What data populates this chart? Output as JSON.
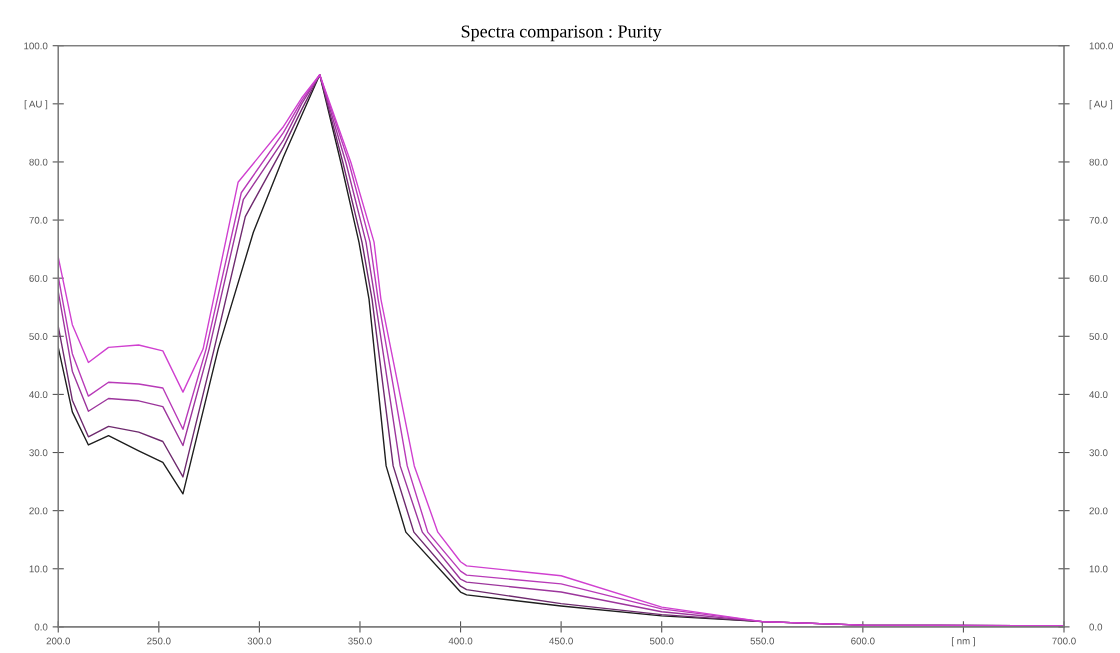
{
  "chart_data": {
    "type": "line",
    "title": "Spectra comparison : Purity",
    "xlim": [
      200,
      700
    ],
    "xticks": [
      {
        "value": 200,
        "label": "200.0"
      },
      {
        "value": 250,
        "label": "250.0"
      },
      {
        "value": 300,
        "label": "300.0"
      },
      {
        "value": 350,
        "label": "350.0"
      },
      {
        "value": 400,
        "label": "400.0"
      },
      {
        "value": 450,
        "label": "450.0"
      },
      {
        "value": 500,
        "label": "500.0"
      },
      {
        "value": 550,
        "label": "550.0"
      },
      {
        "value": 600,
        "label": "600.0"
      },
      {
        "value": 650,
        "label": "[ nm ]"
      },
      {
        "value": 700,
        "label": "700.0"
      }
    ],
    "ylim": [
      0,
      100
    ],
    "yticks": [
      {
        "value": 0,
        "label": "0.0"
      },
      {
        "value": 10,
        "label": "10.0"
      },
      {
        "value": 20,
        "label": "20.0"
      },
      {
        "value": 30,
        "label": "30.0"
      },
      {
        "value": 40,
        "label": "40.0"
      },
      {
        "value": 50,
        "label": "50.0"
      },
      {
        "value": 60,
        "label": "60.0"
      },
      {
        "value": 70,
        "label": "70.0"
      },
      {
        "value": 80,
        "label": "80.0"
      },
      {
        "value": 90,
        "label": "[ AU ]"
      },
      {
        "value": 100,
        "label": "100.0"
      }
    ],
    "y2lim": [
      0,
      100
    ],
    "y2ticks": [
      {
        "value": 0,
        "label": "0.0"
      },
      {
        "value": 10,
        "label": "10.0"
      },
      {
        "value": 20,
        "label": "20.0"
      },
      {
        "value": 30,
        "label": "30.0"
      },
      {
        "value": 40,
        "label": "40.0"
      },
      {
        "value": 50,
        "label": "50.0"
      },
      {
        "value": 60,
        "label": "60.0"
      },
      {
        "value": 70,
        "label": "70.0"
      },
      {
        "value": 80,
        "label": "80.0"
      },
      {
        "value": 90,
        "label": "[ AU ]"
      },
      {
        "value": 100,
        "label": "100.0"
      }
    ],
    "grid": false,
    "legend": false,
    "series": [
      {
        "color": "#1e1e1e",
        "x": [
          200,
          207,
          215,
          225,
          240,
          252,
          262,
          279.5,
          297,
          312,
          321,
          330,
          340.5,
          349.5,
          354.5,
          363,
          372.8,
          400,
          403,
          450,
          500,
          550,
          600,
          700
        ],
        "values": [
          48.1,
          37,
          31.3,
          32.9,
          30.3,
          28.3,
          22.9,
          47.8,
          67.9,
          80.9,
          88,
          95,
          79.9,
          66.2,
          56.4,
          27.7,
          16.3,
          6.0,
          5.5,
          3.6,
          1.9,
          0.9,
          0.3,
          0.2
        ]
      },
      {
        "color": "#6e2a6e",
        "x": [
          200,
          207,
          215,
          225,
          240,
          252,
          262,
          277.5,
          293,
          312,
          321,
          330,
          341.5,
          351,
          356,
          366.5,
          376.8,
          400,
          403,
          450,
          500,
          550,
          600,
          700
        ],
        "values": [
          51.7,
          39,
          32.7,
          34.5,
          33.5,
          31.9,
          25.8,
          47.8,
          70.6,
          82.6,
          89,
          95,
          79.9,
          66.2,
          56.4,
          27.7,
          16.3,
          7.0,
          6.4,
          4.0,
          2.1,
          0.9,
          0.3,
          0.2
        ]
      },
      {
        "color": "#9c359c",
        "x": [
          200,
          207,
          215,
          225,
          240,
          252,
          262,
          275,
          292,
          312,
          321,
          330,
          343,
          353,
          357.5,
          370,
          381,
          400,
          403,
          450,
          500,
          550,
          600,
          700
        ],
        "values": [
          57.7,
          44,
          37.1,
          39.3,
          38.9,
          37.9,
          31.2,
          47.8,
          73.5,
          83.8,
          90,
          95,
          79.9,
          66.2,
          56.4,
          27.7,
          16.3,
          8.2,
          7.7,
          6.0,
          2.6,
          0.9,
          0.3,
          0.2
        ]
      },
      {
        "color": "#b83ab8",
        "x": [
          200,
          207,
          215,
          225,
          240,
          252,
          262,
          273.5,
          291,
          312,
          321,
          330,
          344.5,
          355,
          359,
          373.5,
          383.7,
          400,
          403,
          450,
          500,
          550,
          600,
          700
        ],
        "values": [
          60.3,
          47,
          39.7,
          42.1,
          41.8,
          41.1,
          34.0,
          47.8,
          74.7,
          85.1,
          90.5,
          95,
          79.9,
          66.2,
          56.4,
          27.7,
          16.3,
          9.6,
          8.9,
          7.4,
          3.1,
          0.9,
          0.3,
          0.2
        ]
      },
      {
        "color": "#d040d0",
        "x": [
          200,
          207,
          215,
          225,
          240,
          252,
          262,
          272,
          289.4,
          312,
          321,
          330,
          345.5,
          357,
          360.4,
          377,
          388.7,
          400,
          403,
          450,
          500,
          550,
          600,
          700
        ],
        "values": [
          63.6,
          52,
          45.5,
          48.1,
          48.5,
          47.5,
          40.4,
          47.8,
          76.5,
          86.1,
          91,
          95,
          79.9,
          66.2,
          56.4,
          27.7,
          16.3,
          11.2,
          10.5,
          8.8,
          3.4,
          0.9,
          0.3,
          0.2
        ]
      }
    ]
  }
}
